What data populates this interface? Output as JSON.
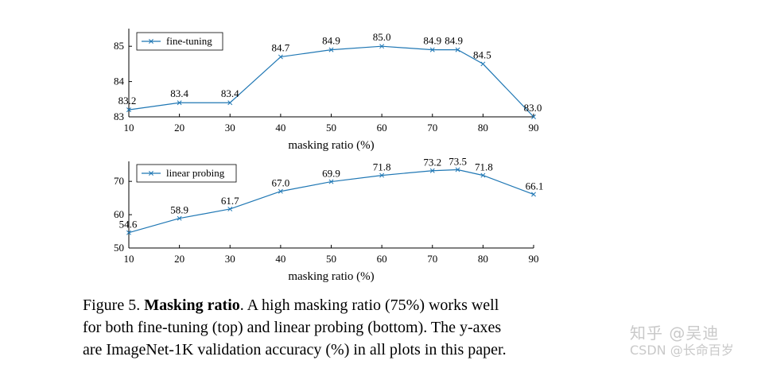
{
  "chart_data": [
    {
      "type": "line",
      "title": "",
      "xlabel": "masking ratio (%)",
      "ylabel": "",
      "xlim": [
        10,
        90
      ],
      "ylim": [
        83,
        85.5
      ],
      "xticks": [
        10,
        20,
        30,
        40,
        50,
        60,
        70,
        80,
        90
      ],
      "yticks": [
        83,
        84,
        85
      ],
      "legend_position": "top-left",
      "series": [
        {
          "name": "fine-tuning",
          "color": "#1f77b4",
          "marker": "x",
          "x": [
            10,
            20,
            30,
            40,
            50,
            60,
            70,
            75,
            80,
            90
          ],
          "values": [
            83.2,
            83.4,
            83.4,
            84.7,
            84.9,
            85.0,
            84.9,
            84.9,
            84.5,
            83.0
          ],
          "labels": [
            "83.2",
            "83.4",
            "83.4",
            "84.7",
            "84.9",
            "85.0",
            "84.9",
            "84.9",
            "84.5",
            "83.0"
          ]
        }
      ]
    },
    {
      "type": "line",
      "title": "",
      "xlabel": "masking ratio (%)",
      "ylabel": "",
      "xlim": [
        10,
        90
      ],
      "ylim": [
        50,
        76
      ],
      "xticks": [
        10,
        20,
        30,
        40,
        50,
        60,
        70,
        80,
        90
      ],
      "yticks": [
        50,
        60,
        70
      ],
      "legend_position": "top-left",
      "series": [
        {
          "name": "linear probing",
          "color": "#1f77b4",
          "marker": "x",
          "x": [
            10,
            20,
            30,
            40,
            50,
            60,
            70,
            75,
            80,
            90
          ],
          "values": [
            54.6,
            58.9,
            61.7,
            67.0,
            69.9,
            71.8,
            73.2,
            73.5,
            71.8,
            66.1
          ],
          "labels": [
            "54.6",
            "58.9",
            "61.7",
            "67.0",
            "69.9",
            "71.8",
            "73.2",
            "73.5",
            "71.8",
            "66.1"
          ]
        }
      ]
    }
  ],
  "caption": {
    "prefix": "Figure 5.",
    "bold": "Masking ratio",
    "line1_rest": ". A high masking ratio (75%) works well",
    "line2": "for both fine-tuning (top) and linear probing (bottom). The y-axes",
    "line3": "are ImageNet-1K validation accuracy (%) in all plots in this paper."
  },
  "watermark": {
    "main": "知乎 @吴迪",
    "sub": "CSDN @长命百岁"
  }
}
